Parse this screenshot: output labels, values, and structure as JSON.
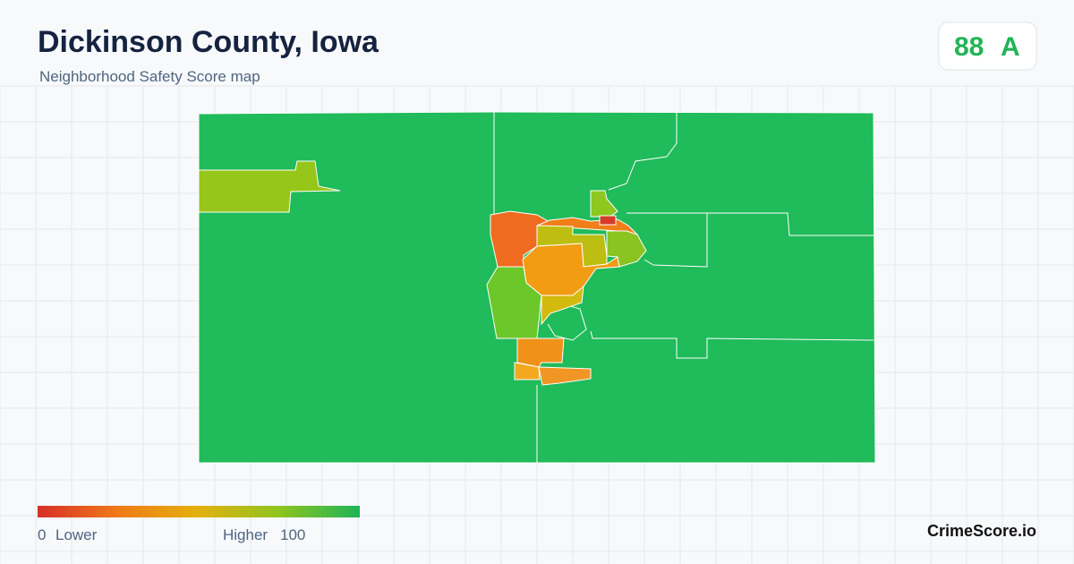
{
  "header": {
    "title": "Dickinson County, Iowa",
    "subtitle": "Neighborhood Safety Score map"
  },
  "badge": {
    "score": "88",
    "grade": "A"
  },
  "legend": {
    "min": "0",
    "low_label": "Lower",
    "high_label": "Higher",
    "max": "100"
  },
  "footer": {
    "brand": "CrimeScore.io"
  }
}
